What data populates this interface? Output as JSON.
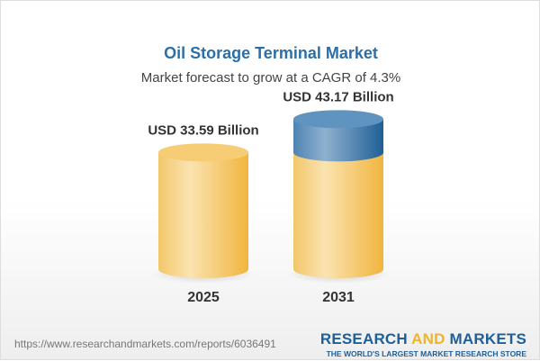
{
  "title": "Oil Storage Terminal Market",
  "subtitle": "Market forecast to grow at a CAGR of 4.3%",
  "chart_data": {
    "type": "bar",
    "style": "3d-cylinder",
    "categories": [
      "2025",
      "2031"
    ],
    "values": [
      33.59,
      43.17
    ],
    "value_labels": [
      "USD 33.59 Billion",
      "USD 43.17 Billion"
    ],
    "unit": "USD Billion",
    "colors": {
      "base": "#f3c25a",
      "growth": "#2f6ea3"
    }
  },
  "footer": {
    "url": "https://www.researchandmarkets.com/reports/6036491",
    "logo_part1": "RESEARCH ",
    "logo_part2": "AND",
    "logo_part3": " MARKETS",
    "tagline": "THE WORLD'S LARGEST MARKET RESEARCH STORE"
  }
}
